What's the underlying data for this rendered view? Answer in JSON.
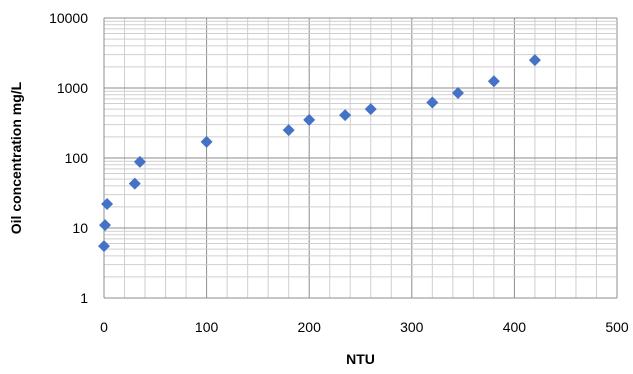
{
  "chart_data": {
    "type": "scatter",
    "xlabel": "NTU",
    "ylabel": "Oil concentration mg/L",
    "xlim": [
      0,
      500
    ],
    "ylim": [
      1,
      10000
    ],
    "y_scale": "log",
    "x_ticks": [
      "0",
      "100",
      "200",
      "300",
      "400",
      "500"
    ],
    "y_ticks": [
      "1",
      "10",
      "100",
      "1000",
      "10000"
    ],
    "grid": true,
    "marker": "diamond",
    "marker_color": "#4472C4",
    "points": [
      {
        "x": 0,
        "y": 5.5
      },
      {
        "x": 1,
        "y": 11
      },
      {
        "x": 3,
        "y": 22
      },
      {
        "x": 30,
        "y": 43
      },
      {
        "x": 35,
        "y": 88
      },
      {
        "x": 100,
        "y": 170
      },
      {
        "x": 180,
        "y": 250
      },
      {
        "x": 200,
        "y": 350
      },
      {
        "x": 235,
        "y": 410
      },
      {
        "x": 260,
        "y": 500
      },
      {
        "x": 320,
        "y": 620
      },
      {
        "x": 345,
        "y": 850
      },
      {
        "x": 380,
        "y": 1250
      },
      {
        "x": 420,
        "y": 2500
      }
    ]
  }
}
